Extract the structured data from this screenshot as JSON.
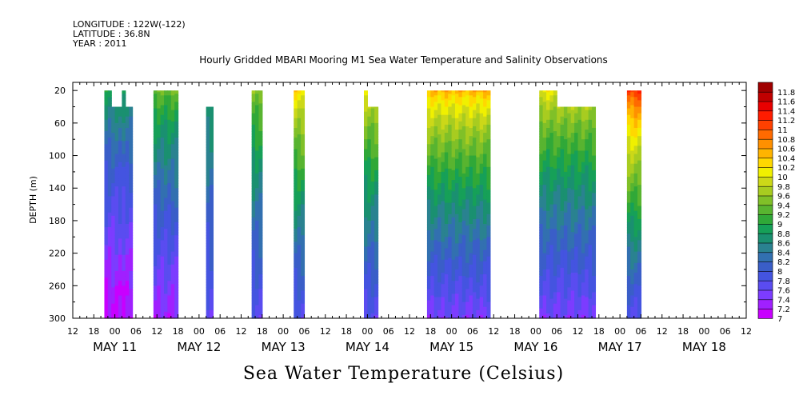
{
  "header": {
    "longitude": "LONGITUDE : 122W(-122)",
    "latitude": "LATITUDE : 36.8N",
    "year": "YEAR : 2011"
  },
  "chart_data": {
    "type": "heatmap",
    "title": "Hourly Gridded MBARI Mooring M1 Sea Water Temperature and Salinity Observations",
    "ylabel": "DEPTH (m)",
    "colorbar_label": "Sea Water Temperature (Celsius)",
    "ylim": [
      10,
      300
    ],
    "y_inverted": true,
    "yticks": [
      20,
      60,
      100,
      140,
      180,
      220,
      260,
      300
    ],
    "xlim_hours": [
      -12,
      180
    ],
    "x_hour_ticks": [
      "12",
      "18",
      "00",
      "06",
      "12",
      "18",
      "00",
      "06",
      "12",
      "18",
      "00",
      "06",
      "12",
      "18",
      "00",
      "06",
      "12",
      "18",
      "00",
      "06",
      "12",
      "18",
      "00",
      "06",
      "12",
      "18",
      "00",
      "06",
      "12",
      "18",
      "00",
      "06",
      "12"
    ],
    "x_date_labels": [
      "MAY 11",
      "MAY 12",
      "MAY 13",
      "MAY 14",
      "MAY 15",
      "MAY 16",
      "MAY 17",
      "MAY 18"
    ],
    "colorbar": {
      "levels": [
        7,
        7.2,
        7.4,
        7.6,
        7.8,
        8,
        8.2,
        8.4,
        8.6,
        8.8,
        9,
        9.2,
        9.4,
        9.6,
        9.8,
        10,
        10.2,
        10.4,
        10.6,
        10.8,
        11,
        11.2,
        11.4,
        11.6,
        11.8
      ],
      "colors": [
        "#c800ff",
        "#a020ff",
        "#7c3cff",
        "#5a4cf0",
        "#4454e0",
        "#3a5ec8",
        "#3270b0",
        "#2a8290",
        "#1a9070",
        "#16a058",
        "#30a838",
        "#58b430",
        "#80c028",
        "#a8cc20",
        "#ccd818",
        "#f0f000",
        "#ffd800",
        "#ffb400",
        "#ff9000",
        "#ff6a00",
        "#ff4000",
        "#ff1c00",
        "#e80000",
        "#c00000",
        "#a00000"
      ]
    },
    "blocks": [
      {
        "t0": -3,
        "t1": 2,
        "tops": [
          [
            -3,
            20
          ],
          [
            -0.5,
            40
          ],
          [
            2,
            40
          ]
        ],
        "surf": 8.9,
        "deep": 7.1
      },
      {
        "t0": 2,
        "t1": 5,
        "tops": [
          [
            2,
            20
          ],
          [
            3,
            40
          ],
          [
            5,
            40
          ]
        ],
        "surf": 8.9,
        "deep": 7.1
      },
      {
        "t0": 11,
        "t1": 18,
        "tops": [
          [
            11,
            20
          ],
          [
            18,
            40
          ]
        ],
        "surf": 9.4,
        "deep": 7.3
      },
      {
        "t0": 26,
        "t1": 28,
        "tops": [
          [
            26,
            40
          ]
        ],
        "surf": 9.0,
        "deep": 7.7
      },
      {
        "t0": 39,
        "t1": 42,
        "tops": [
          [
            39,
            20
          ]
        ],
        "surf": 9.6,
        "deep": 7.7
      },
      {
        "t0": 51,
        "t1": 54,
        "tops": [
          [
            51,
            20
          ]
        ],
        "surf": 10.3,
        "deep": 7.7
      },
      {
        "t0": 71,
        "t1": 75,
        "tops": [
          [
            71,
            20
          ],
          [
            72,
            40
          ],
          [
            75,
            40
          ]
        ],
        "surf": 10.1,
        "deep": 7.7
      },
      {
        "t0": 89,
        "t1": 107,
        "tops": [
          [
            89,
            20
          ]
        ],
        "surf": 10.5,
        "deep": 7.5
      },
      {
        "t0": 121,
        "t1": 137,
        "tops": [
          [
            121,
            20
          ],
          [
            126,
            40
          ],
          [
            133,
            40
          ],
          [
            137,
            20
          ]
        ],
        "surf": 10.1,
        "deep": 7.5
      },
      {
        "t0": 146,
        "t1": 150,
        "tops": [
          [
            146,
            20
          ]
        ],
        "surf": 11.2,
        "deep": 7.7
      }
    ]
  }
}
